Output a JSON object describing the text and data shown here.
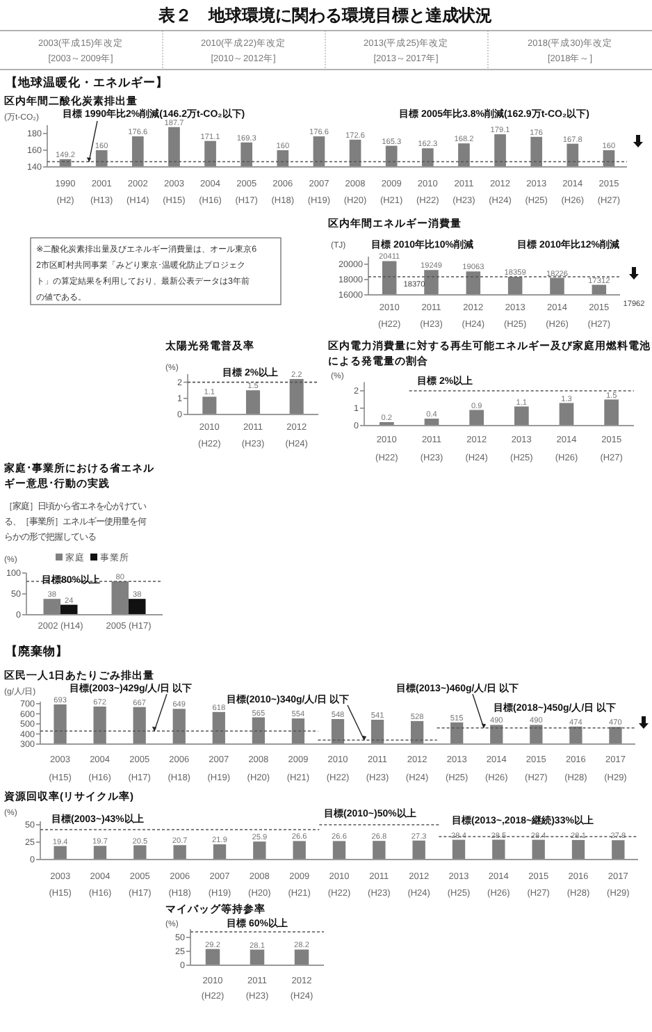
{
  "chart_data": [
    {
      "type": "other",
      "title": "表２　地球環境に関わる環境目標と達成状況",
      "annotations": [
        "2003(平成15)年改定 [2003～2009年]",
        "2010(平成22)年改定 [2010～2012年]",
        "2013(平成25)年改定 [2013～2017年]",
        "2018(平成30)年改定 [2018年～]",
        "【地球温暖化・エネルギー】",
        "※二酸化炭素排出量及びエネルギー消費量は、オール東京62市区町村共同事業「みどり東京･温暖化防止プロジェクト」の算定結果を利用しており、最新公表データは3年前の値である。",
        "【廃棄物】"
      ]
    },
    {
      "type": "bar",
      "title": "区内年間二酸化炭素排出量",
      "ylabel": "(万t-CO₂)",
      "categories": [
        "1990 (H2)",
        "2001 (H13)",
        "2002 (H14)",
        "2003 (H15)",
        "2004 (H16)",
        "2005 (H17)",
        "2006 (H18)",
        "2007 (H19)",
        "2008 (H20)",
        "2009 (H21)",
        "2010 (H22)",
        "2011 (H23)",
        "2012 (H24)",
        "2013 (H25)",
        "2014 (H26)",
        "2015 (H27)"
      ],
      "values": [
        149.2,
        160,
        176.6,
        187.7,
        171.1,
        169.3,
        160,
        176.6,
        172.6,
        165.3,
        162.3,
        168.2,
        179.1,
        176,
        167.8,
        160
      ],
      "color": "#7f7f7f",
      "ylim": [
        140,
        190
      ],
      "yticks": [
        140,
        160,
        180
      ],
      "data_labels": true,
      "ref_lines": [
        {
          "axis": "y",
          "value": 146.2,
          "label": "目標 1990年比2%削減(146.2万t-CO₂以下)",
          "line_style": "dashed"
        }
      ],
      "annotations": [
        "目標 2005年比3.8%削減(162.9万t-CO₂以下)"
      ]
    },
    {
      "type": "bar",
      "title": "区内年間エネルギー消費量",
      "ylabel": "(TJ)",
      "categories": [
        "2010 (H22)",
        "2011 (H23)",
        "2012 (H24)",
        "2013 (H25)",
        "2014 (H26)",
        "2015 (H27)"
      ],
      "values": [
        20411,
        19249,
        19063,
        18359,
        18226,
        17312
      ],
      "color": "#7f7f7f",
      "ylim": [
        16000,
        21000
      ],
      "yticks": [
        16000,
        18000,
        20000
      ],
      "data_labels": true,
      "ref_lines": [
        {
          "axis": "y",
          "value": 18370,
          "label": "目標 2010年比10%削減",
          "line_style": "dashed"
        }
      ],
      "annotations": [
        "18370",
        "目標 2010年比12%削減",
        "17962"
      ]
    },
    {
      "type": "bar",
      "title": "太陽光発電普及率",
      "ylabel": "(%)",
      "categories": [
        "2010 (H22)",
        "2011 (H23)",
        "2012 (H24)"
      ],
      "values": [
        1.1,
        1.5,
        2.2
      ],
      "color": "#7f7f7f",
      "ylim": [
        0,
        2.5
      ],
      "yticks": [
        0,
        1,
        2
      ],
      "data_labels": true,
      "ref_lines": [
        {
          "axis": "y",
          "value": 2,
          "label": "目標 2%以上",
          "line_style": "dashed"
        }
      ]
    },
    {
      "type": "bar",
      "title": "区内電力消費量に対する再生可能エネルギー及び家庭用燃料電池による発電量の割合",
      "ylabel": "(%)",
      "categories": [
        "2010 (H22)",
        "2011 (H23)",
        "2012 (H24)",
        "2013 (H25)",
        "2014 (H26)",
        "2015 (H27)"
      ],
      "values": [
        0.2,
        0.4,
        0.9,
        1.1,
        1.3,
        1.5
      ],
      "color": "#7f7f7f",
      "ylim": [
        0,
        2.5
      ],
      "yticks": [
        0,
        1,
        2
      ],
      "data_labels": true,
      "ref_lines": [
        {
          "axis": "y",
          "value": 2,
          "label": "目標 2%以上",
          "line_style": "dashed"
        }
      ]
    },
    {
      "type": "bar",
      "title": "家庭･事業所における省エネルギー意思･行動の実践",
      "subtitle": "［家庭］日頃から省エネを心がけている、［事業所］エネルギー使用量を何らかの形で把握している",
      "ylabel": "(%)",
      "categories": [
        "2002 (H14)",
        "2005 (H17)"
      ],
      "ylim": [
        0,
        100
      ],
      "yticks": [
        0,
        50,
        100
      ],
      "data_labels": true,
      "legend": "top",
      "series": [
        {
          "name": "家庭",
          "color": "#808080",
          "values": [
            38,
            80
          ]
        },
        {
          "name": "事業所",
          "color": "#111111",
          "values": [
            24,
            38
          ]
        }
      ],
      "ref_lines": [
        {
          "axis": "y",
          "value": 80,
          "label": "目標80%以上",
          "line_style": "dashed"
        }
      ]
    },
    {
      "type": "bar",
      "title": "区民一人1日あたりごみ排出量",
      "ylabel": "(g/人/日)",
      "categories": [
        "2003 (H15)",
        "2004 (H16)",
        "2005 (H17)",
        "2006 (H18)",
        "2007 (H19)",
        "2008 (H20)",
        "2009 (H21)",
        "2010 (H22)",
        "2011 (H23)",
        "2012 (H24)",
        "2013 (H25)",
        "2014 (H26)",
        "2015 (H27)",
        "2016 (H28)",
        "2017 (H29)"
      ],
      "values": [
        693,
        672,
        667,
        649,
        618,
        565,
        554,
        548,
        541,
        528,
        515,
        490,
        490,
        474,
        470
      ],
      "color": "#7f7f7f",
      "ylim": [
        300,
        720
      ],
      "yticks": [
        300,
        400,
        500,
        600,
        700
      ],
      "data_labels": true,
      "ref_lines": [
        {
          "axis": "y",
          "value": 429,
          "label": "目標(2003~)429g/人/日 以下",
          "line_style": "dashed"
        },
        {
          "axis": "y",
          "value": 340,
          "label": "目標(2010~)340g/人/日 以下",
          "line_style": "dashed"
        },
        {
          "axis": "y",
          "value": 460,
          "label": "目標(2013~)460g/人/日 以下",
          "line_style": "dashed"
        }
      ],
      "annotations": [
        "目標(2018~)450g/人/日 以下"
      ]
    },
    {
      "type": "bar",
      "title": "資源回収率(リサイクル率)",
      "ylabel": "(%)",
      "categories": [
        "2003 (H15)",
        "2004 (H16)",
        "2005 (H17)",
        "2006 (H18)",
        "2007 (H19)",
        "2008 (H20)",
        "2009 (H21)",
        "2010 (H22)",
        "2011 (H23)",
        "2012 (H24)",
        "2013 (H25)",
        "2014 (H26)",
        "2015 (H27)",
        "2016 (H28)",
        "2017 (H29)"
      ],
      "values": [
        19.4,
        19.7,
        20.5,
        20.7,
        21.9,
        25.9,
        26.6,
        26.6,
        26.8,
        27.3,
        28.4,
        28.5,
        28.4,
        28.1,
        27.8
      ],
      "color": "#7f7f7f",
      "ylim": [
        0,
        55
      ],
      "yticks": [
        0,
        25,
        50
      ],
      "data_labels": true,
      "ref_lines": [
        {
          "axis": "y",
          "value": 43,
          "label": "目標(2003~)43%以上",
          "line_style": "dashed"
        },
        {
          "axis": "y",
          "value": 50,
          "label": "目標(2010~)50%以上",
          "line_style": "dashed"
        },
        {
          "axis": "y",
          "value": 33,
          "label": "目標(2013~,2018~継続)33%以上",
          "line_style": "dashed"
        }
      ]
    },
    {
      "type": "bar",
      "title": "マイバッグ等持参率",
      "ylabel": "(%)",
      "categories": [
        "2010 (H22)",
        "2011 (H23)",
        "2012 (H24)"
      ],
      "values": [
        29.2,
        28.1,
        28.2
      ],
      "color": "#7f7f7f",
      "ylim": [
        0,
        65
      ],
      "yticks": [
        0,
        25,
        50
      ],
      "data_labels": true,
      "ref_lines": [
        {
          "axis": "y",
          "value": 60,
          "label": "目標 60%以上",
          "line_style": "dashed"
        }
      ]
    }
  ]
}
